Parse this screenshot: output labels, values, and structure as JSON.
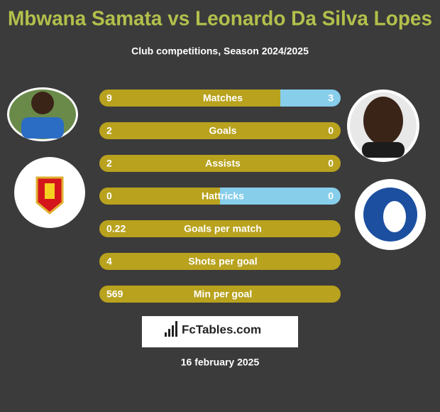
{
  "header": {
    "title": "Mbwana Samata vs Leonardo Da Silva Lopes",
    "subtitle": "Club competitions, Season 2024/2025"
  },
  "rows": [
    {
      "label": "Matches",
      "left": 9,
      "right": 3
    },
    {
      "label": "Goals",
      "left": 2,
      "right": 0
    },
    {
      "label": "Assists",
      "left": 2,
      "right": 0
    },
    {
      "label": "Hattricks",
      "left": 0,
      "right": 0
    },
    {
      "label": "Goals per match",
      "left": 0.22
    },
    {
      "label": "Shots per goal",
      "left": 4
    },
    {
      "label": "Min per goal",
      "left": 569
    }
  ],
  "footer": {
    "brand": "FcTables.com",
    "date": "16 february 2025"
  }
}
